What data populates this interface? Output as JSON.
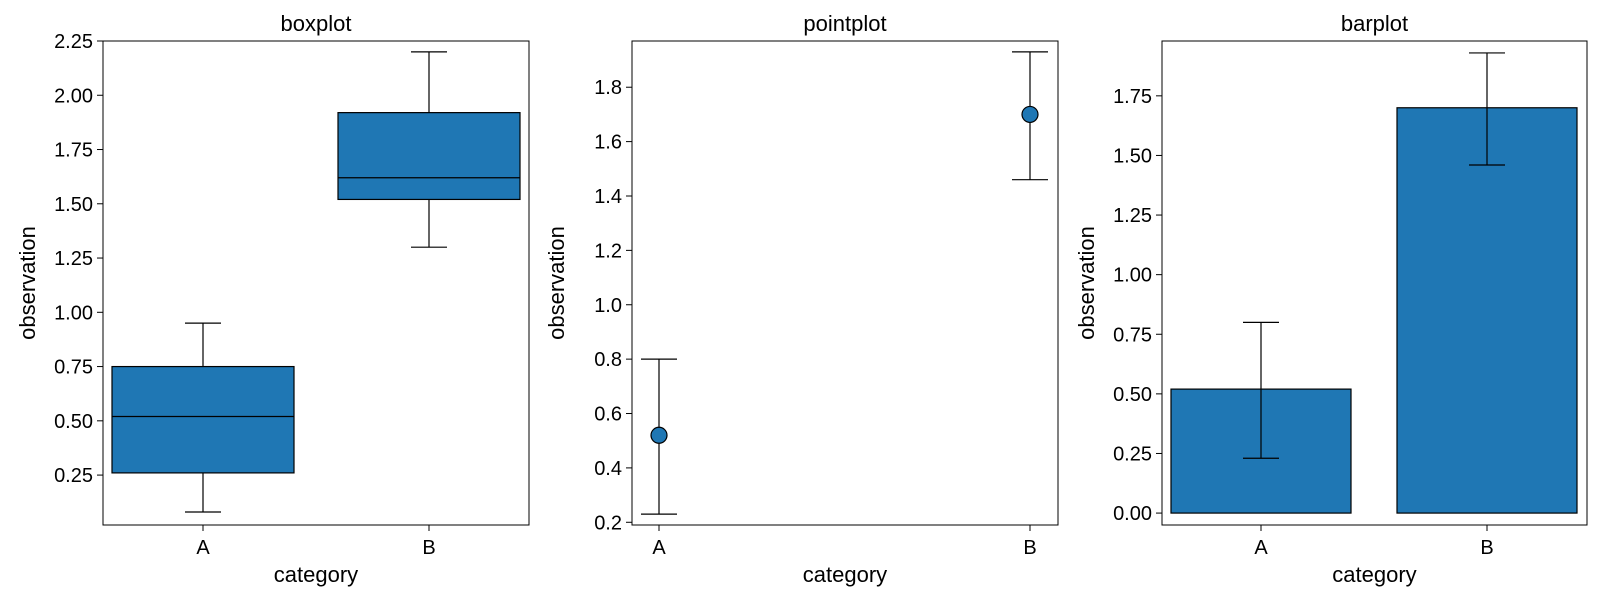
{
  "figure": {
    "subplots": [
      "boxplot",
      "pointplot",
      "barplot"
    ]
  },
  "colors": {
    "fill": "#1f77b4",
    "edge": "#000000"
  },
  "chart_data": [
    {
      "type": "box",
      "title": "boxplot",
      "xlabel": "category",
      "ylabel": "observation",
      "categories": [
        "A",
        "B"
      ],
      "ylim": [
        0.02,
        2.25
      ],
      "yticks": [
        "0.25",
        "0.50",
        "0.75",
        "1.00",
        "1.25",
        "1.50",
        "1.75",
        "2.00",
        "2.25"
      ],
      "boxes": [
        {
          "category": "A",
          "whisker_low": 0.08,
          "q1": 0.26,
          "median": 0.52,
          "q3": 0.75,
          "whisker_high": 0.95
        },
        {
          "category": "B",
          "whisker_low": 1.3,
          "q1": 1.52,
          "median": 1.62,
          "q3": 1.92,
          "whisker_high": 2.2
        }
      ],
      "grid": false
    },
    {
      "type": "point",
      "title": "pointplot",
      "xlabel": "category",
      "ylabel": "observation",
      "categories": [
        "A",
        "B"
      ],
      "ylim": [
        0.19,
        1.97
      ],
      "yticks": [
        "0.2",
        "0.4",
        "0.6",
        "0.8",
        "1.0",
        "1.2",
        "1.4",
        "1.6",
        "1.8"
      ],
      "points": [
        {
          "category": "A",
          "value": 0.52,
          "err_low": 0.23,
          "err_high": 0.8
        },
        {
          "category": "B",
          "value": 1.7,
          "err_low": 1.46,
          "err_high": 1.93
        }
      ],
      "grid": false
    },
    {
      "type": "bar",
      "title": "barplot",
      "xlabel": "category",
      "ylabel": "observation",
      "categories": [
        "A",
        "B"
      ],
      "ylim": [
        -0.05,
        1.98
      ],
      "yticks": [
        "0.00",
        "0.25",
        "0.50",
        "0.75",
        "1.00",
        "1.25",
        "1.50",
        "1.75"
      ],
      "bars": [
        {
          "category": "A",
          "value": 0.52,
          "err_low": 0.23,
          "err_high": 0.8
        },
        {
          "category": "B",
          "value": 1.7,
          "err_low": 1.46,
          "err_high": 1.93
        }
      ],
      "grid": false
    }
  ]
}
